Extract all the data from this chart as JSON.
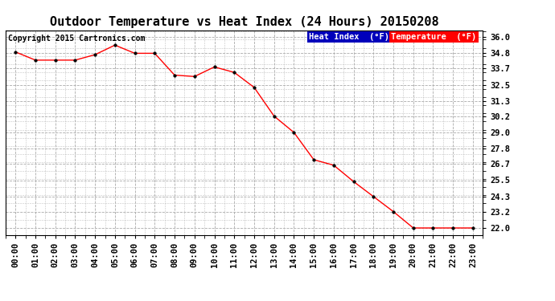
{
  "title": "Outdoor Temperature vs Heat Index (24 Hours) 20150208",
  "copyright": "Copyright 2015 Cartronics.com",
  "x_labels": [
    "00:00",
    "01:00",
    "02:00",
    "03:00",
    "04:00",
    "05:00",
    "06:00",
    "07:00",
    "08:00",
    "09:00",
    "10:00",
    "11:00",
    "12:00",
    "13:00",
    "14:00",
    "15:00",
    "16:00",
    "17:00",
    "18:00",
    "19:00",
    "20:00",
    "21:00",
    "22:00",
    "23:00"
  ],
  "temperature": [
    34.9,
    34.3,
    34.3,
    34.3,
    34.7,
    35.4,
    34.8,
    34.8,
    33.2,
    33.1,
    33.8,
    33.4,
    32.3,
    30.2,
    29.0,
    27.0,
    26.6,
    25.4,
    24.3,
    23.2,
    22.0,
    22.0,
    22.0,
    22.0
  ],
  "yticks": [
    36.0,
    34.8,
    33.7,
    32.5,
    31.3,
    30.2,
    29.0,
    27.8,
    26.7,
    25.5,
    24.3,
    23.2,
    22.0
  ],
  "ymin": 21.5,
  "ymax": 36.5,
  "temp_color": "#ff0000",
  "heat_index_color": "#ff0000",
  "bg_color": "#ffffff",
  "grid_color": "#aaaaaa",
  "legend_temp_bg": "#ff0000",
  "legend_hi_bg": "#0000bb",
  "title_fontsize": 11,
  "axis_label_fontsize": 7.5,
  "copyright_fontsize": 7
}
